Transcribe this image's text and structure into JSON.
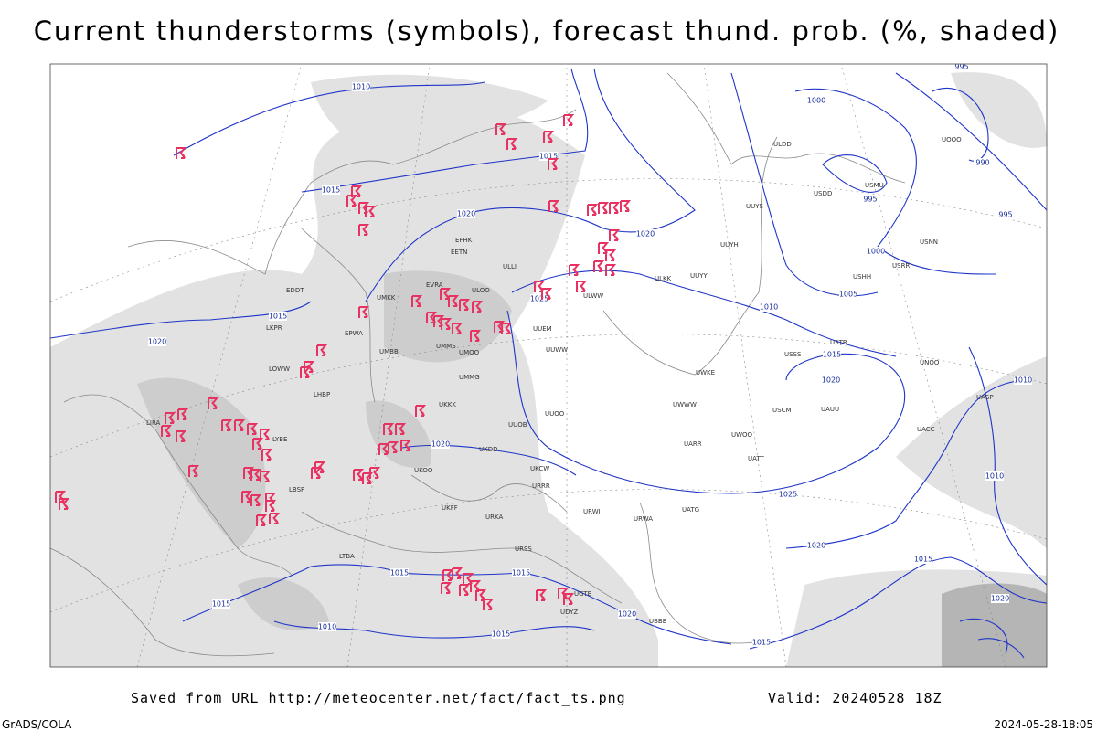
{
  "header": {
    "title": "Current thunderstorms (symbols), forecast thund. prob. (%, shaded)"
  },
  "footer": {
    "saved_from": "Saved from URL http://meteocenter.net/fact/fact_ts.png",
    "valid": "Valid: 20240528 18Z",
    "software": "GrADS/COLA",
    "timestamp": "2024-05-28-18:05"
  },
  "isobar_labels": [
    "1010",
    "1015",
    "1020",
    "1015",
    "1015",
    "1020",
    "1025",
    "1020",
    "1010",
    "1005",
    "1000",
    "1000",
    "995",
    "990",
    "995",
    "995",
    "1010",
    "1015",
    "1020",
    "1025",
    "1020",
    "1015",
    "1010",
    "1020",
    "1015",
    "1015",
    "1015",
    "1020",
    "1015",
    "1010",
    "1015",
    "1020"
  ],
  "stations": [
    "UUEM",
    "UUWW",
    "UUOO",
    "UUOB",
    "UKKK",
    "UMMS",
    "UMMG",
    "UMOO",
    "ULLI",
    "EFHK",
    "EETN",
    "EVRA",
    "ULOO",
    "UMKK",
    "EPWA",
    "UMBB",
    "LKPR",
    "EDDT",
    "LOWW",
    "LHBP",
    "LIRA",
    "LYBE",
    "LBSF",
    "LTBA",
    "URSS",
    "URKA",
    "URRR",
    "UKCW",
    "UKDD",
    "UKOO",
    "UKFF",
    "UGTB",
    "UDYZ",
    "UBBB",
    "URWI",
    "URWA",
    "UATG",
    "UARR",
    "UATT",
    "UWOO",
    "UWKE",
    "UWWW",
    "USSS",
    "USCM",
    "UAUU",
    "UACC",
    "UASP",
    "USTR",
    "UNOO",
    "USNN",
    "USRR",
    "USHH",
    "USDD",
    "USMU",
    "UOOO",
    "ULDD",
    "ULWW",
    "ULKK",
    "UUYY",
    "UUYH",
    "UUYS"
  ]
}
